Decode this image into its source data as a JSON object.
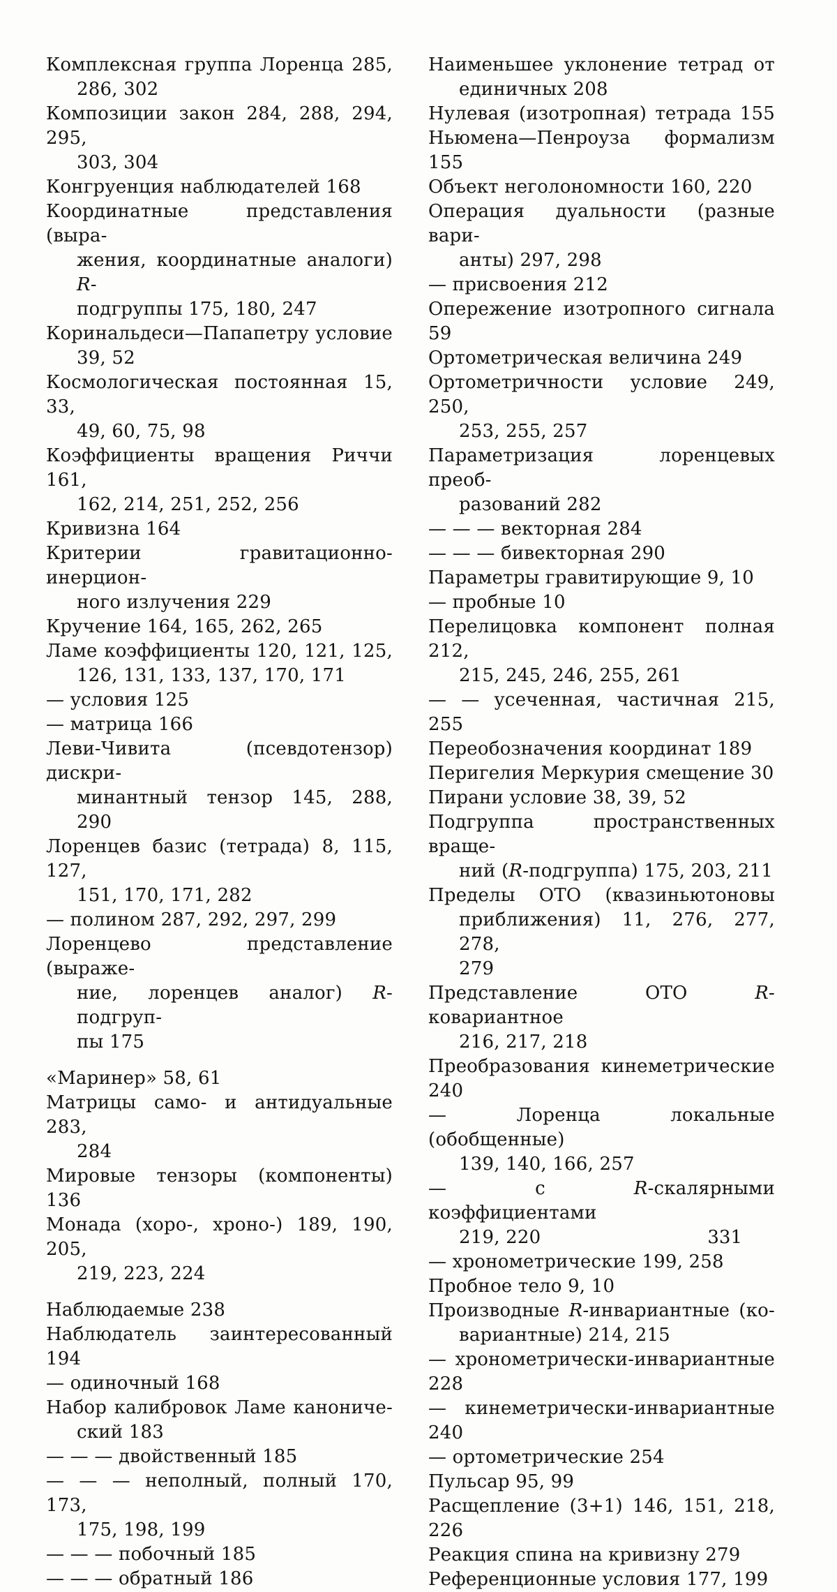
{
  "page_number": "331",
  "colors": {
    "paper": "#fdfdfb",
    "ink": "#151413"
  },
  "columns": {
    "left": [
      {
        "lines": [
          "Комплексная группа Лоренца 285,",
          "286, 302"
        ]
      },
      {
        "lines": [
          "Композиции закон 284, 288, 294, 295,",
          "303, 304"
        ]
      },
      {
        "lines": [
          "Конгруенция наблюдателей 168"
        ]
      },
      {
        "lines": [
          "Координатные представления (выра-",
          "жения, координатные аналоги) R-",
          "подгруппы 175, 180, 247"
        ]
      },
      {
        "lines": [
          "Коринальдеси—Папапетру условие",
          "39, 52"
        ]
      },
      {
        "lines": [
          "Космологическая постоянная 15, 33,",
          "49, 60, 75, 98"
        ]
      },
      {
        "lines": [
          "Коэффициенты вращения Риччи 161,",
          "162, 214, 251, 252, 256"
        ]
      },
      {
        "lines": [
          "Кривизна 164"
        ]
      },
      {
        "lines": [
          "Критерии гравитационно-инерцион-",
          "ного излучения 229"
        ]
      },
      {
        "lines": [
          "Кручение 164, 165, 262, 265"
        ]
      },
      {
        "lines": [
          "Ламе коэффициенты 120, 121, 125,",
          "126, 131, 133, 137, 170, 171"
        ]
      },
      {
        "lines": [
          "— условия 125"
        ]
      },
      {
        "lines": [
          "— матрица 166"
        ]
      },
      {
        "lines": [
          "Леви-Чивита (псевдотензор) дискри-",
          "минантный тензор 145, 288, 290"
        ]
      },
      {
        "lines": [
          "Лоренцев базис (тетрада) 8, 115, 127,",
          "151, 170, 171, 282"
        ]
      },
      {
        "lines": [
          "— полином 287, 292, 297, 299"
        ]
      },
      {
        "lines": [
          "Лоренцево представление (выраже-",
          "ние, лоренцев аналог) R-подгруп-",
          "пы 175"
        ]
      },
      {
        "lines": [
          "«Маринер» 58, 61"
        ],
        "gap": true
      },
      {
        "lines": [
          "Матрицы само- и антидуальные 283,",
          "284"
        ]
      },
      {
        "lines": [
          "Мировые тензоры (компоненты) 136"
        ]
      },
      {
        "lines": [
          "Монада (хоро-, хроно-) 189, 190, 205,",
          "219, 223, 224"
        ]
      },
      {
        "lines": [
          "Наблюдаемые 238"
        ],
        "gap": true
      },
      {
        "lines": [
          "Наблюдатель заинтересованный 194"
        ],
        "jlast": true
      },
      {
        "lines": [
          "— одиночный 168"
        ]
      },
      {
        "lines": [
          "Набор калибровок Ламе канониче-",
          "ский 183"
        ]
      },
      {
        "lines": [
          "— — — двойственный 185"
        ]
      },
      {
        "lines": [
          "— — — неполный, полный 170, 173,",
          "175, 198, 199"
        ]
      },
      {
        "lines": [
          "— — — побочный 185"
        ]
      },
      {
        "lines": [
          "— — — обратный 186"
        ]
      }
    ],
    "right": [
      {
        "lines": [
          "Наименьшее уклонение тетрад от",
          "единичных 208"
        ]
      },
      {
        "lines": [
          "Нулевая (изотропная) тетрада 155"
        ],
        "jlast": true
      },
      {
        "lines": [
          "Ньюмена—Пенроуза формализм 155"
        ],
        "jlast": true
      },
      {
        "lines": [
          "Объект неголономности 160, 220"
        ]
      },
      {
        "lines": [
          "Операция дуальности (разные вари-",
          "анты) 297, 298"
        ]
      },
      {
        "lines": [
          "— присвоения 212"
        ]
      },
      {
        "lines": [
          "Опережение изотропного сигнала 59"
        ],
        "jlast": true
      },
      {
        "lines": [
          "Ортометрическая величина 249"
        ]
      },
      {
        "lines": [
          "Ортометричности условие 249, 250,",
          "253, 255, 257"
        ]
      },
      {
        "lines": [
          "Параметризация лоренцевых преоб-",
          "разований 282"
        ]
      },
      {
        "lines": [
          "— — — векторная 284"
        ]
      },
      {
        "lines": [
          "— — — бивекторная 290"
        ]
      },
      {
        "lines": [
          "Параметры гравитирующие 9, 10"
        ]
      },
      {
        "lines": [
          "— пробные 10"
        ]
      },
      {
        "lines": [
          "Перелицовка компонент полная 212,",
          "215, 245, 246, 255, 261"
        ]
      },
      {
        "lines": [
          "— — усеченная, частичная 215, 255"
        ],
        "jlast": true
      },
      {
        "lines": [
          "Переобозначения координат 189"
        ]
      },
      {
        "lines": [
          "Перигелия Меркурия смещение 30"
        ]
      },
      {
        "lines": [
          "Пирани условие 38, 39, 52"
        ]
      },
      {
        "lines": [
          "Подгруппа пространственных враще-",
          "ний (R-подгруппа) 175, 203, 211"
        ]
      },
      {
        "lines": [
          "Пределы ОТО (квазиньютоновы",
          "приближения) 11, 276, 277, 278,",
          "279"
        ]
      },
      {
        "lines": [
          "Представление ОТО R-ковариантное",
          "216, 217, 218"
        ]
      },
      {
        "lines": [
          "Преобразования кинеметрические 240"
        ],
        "jlast": true
      },
      {
        "lines": [
          "— Лоренца локальные (обобщенные)",
          "139, 140, 166, 257"
        ]
      },
      {
        "lines": [
          "— с R-скалярными коэффициентами",
          "219, 220"
        ]
      },
      {
        "lines": [
          "— хронометрические 199, 258"
        ]
      },
      {
        "lines": [
          "Пробное тело 9, 10"
        ]
      },
      {
        "lines": [
          "Производные R-инвариантные (ко-",
          "вариантные) 214, 215"
        ]
      },
      {
        "lines": [
          "— хронометрически-инвариантные 228"
        ],
        "jlast": true
      },
      {
        "lines": [
          "— кинеметрически-инвариантные 240"
        ],
        "jlast": true
      },
      {
        "lines": [
          "— ортометрические 254"
        ]
      },
      {
        "lines": [
          "Пульсар 95, 99"
        ]
      },
      {
        "lines": [
          "Расщепление (3+1) 146, 151, 218, 226"
        ],
        "jlast": true
      },
      {
        "lines": [
          "Реакция спина на кривизну 279"
        ]
      },
      {
        "lines": [
          "Референционные условия 177, 199"
        ]
      }
    ]
  }
}
